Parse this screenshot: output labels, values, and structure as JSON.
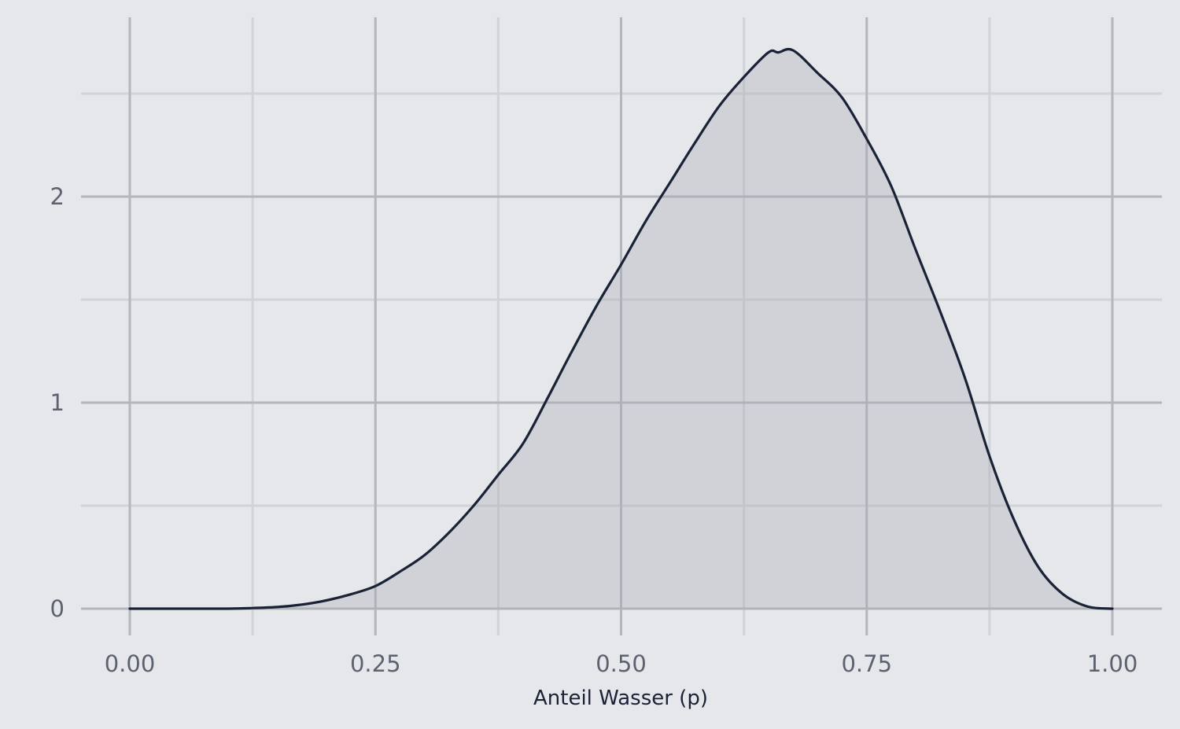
{
  "chart_data": {
    "type": "area",
    "title": "",
    "xlabel": "Anteil Wasser (p)",
    "ylabel": "",
    "xlim": [
      0.0,
      1.0
    ],
    "ylim": [
      0,
      2.7
    ],
    "x_ticks": [
      {
        "value": 0.0,
        "label": "0.00"
      },
      {
        "value": 0.25,
        "label": "0.25"
      },
      {
        "value": 0.5,
        "label": "0.50"
      },
      {
        "value": 0.75,
        "label": "0.75"
      },
      {
        "value": 1.0,
        "label": "1.00"
      }
    ],
    "x_minor_ticks": [
      0.125,
      0.375,
      0.625,
      0.875
    ],
    "y_ticks": [
      {
        "value": 0,
        "label": "0"
      },
      {
        "value": 1,
        "label": "1"
      },
      {
        "value": 2,
        "label": "2"
      }
    ],
    "y_minor_ticks": [
      0.5,
      1.5,
      2.5
    ],
    "grid": true,
    "legend": "none",
    "colors": {
      "background": "#e5e7eb",
      "grid_major": "#b3b6bc",
      "grid_minor": "#d0d3d8",
      "fill": "#a9abb1",
      "line": "#1a2236",
      "tick_text": "#5c6270"
    },
    "series": [
      {
        "x": [
          0.0,
          0.05,
          0.1,
          0.125,
          0.15,
          0.175,
          0.2,
          0.225,
          0.25,
          0.275,
          0.3,
          0.325,
          0.35,
          0.375,
          0.4,
          0.425,
          0.45,
          0.475,
          0.5,
          0.525,
          0.55,
          0.575,
          0.6,
          0.625,
          0.65,
          0.66,
          0.675,
          0.7,
          0.725,
          0.75,
          0.775,
          0.8,
          0.825,
          0.85,
          0.875,
          0.9,
          0.925,
          0.95,
          0.975,
          1.0
        ],
        "y": [
          0.0,
          0.0,
          0.0,
          0.003,
          0.008,
          0.02,
          0.04,
          0.07,
          0.11,
          0.18,
          0.26,
          0.37,
          0.5,
          0.65,
          0.8,
          1.02,
          1.25,
          1.47,
          1.67,
          1.88,
          2.07,
          2.26,
          2.44,
          2.58,
          2.7,
          2.7,
          2.71,
          2.6,
          2.48,
          2.28,
          2.05,
          1.74,
          1.44,
          1.12,
          0.74,
          0.43,
          0.2,
          0.07,
          0.01,
          0.0
        ]
      }
    ]
  }
}
